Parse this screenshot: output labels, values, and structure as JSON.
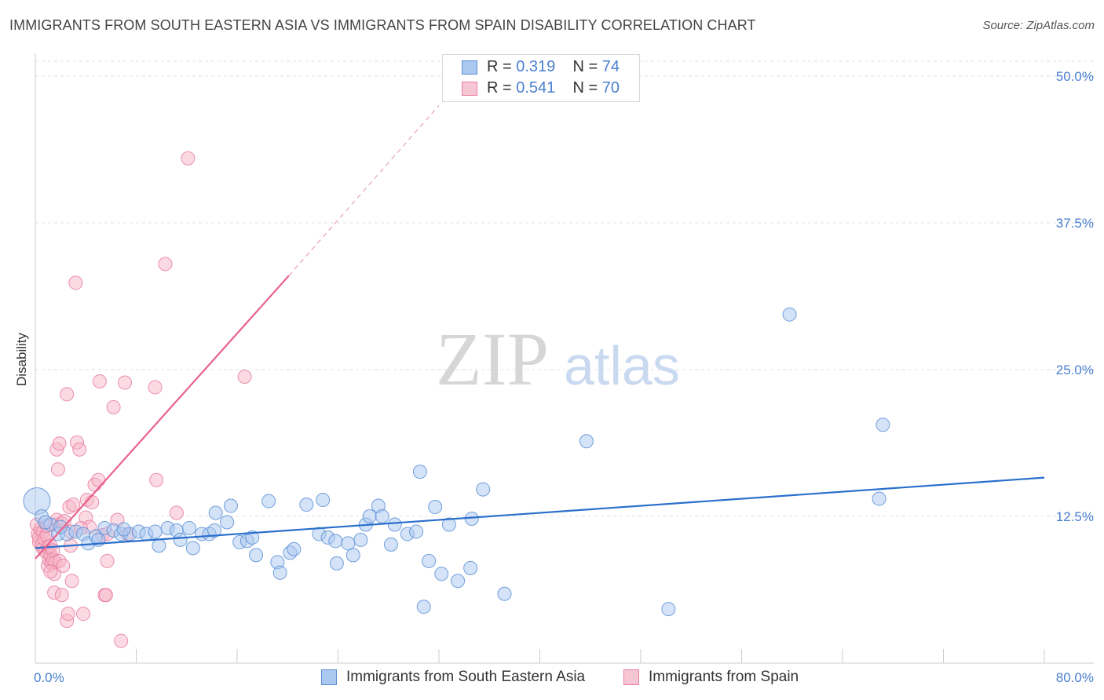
{
  "title": "IMMIGRANTS FROM SOUTH EASTERN ASIA VS IMMIGRANTS FROM SPAIN DISABILITY CORRELATION CHART",
  "source": "Source: ZipAtlas.com",
  "watermark": {
    "zip": "ZIP",
    "atlas": "atlas"
  },
  "legend": {
    "r_label": "R =",
    "n_label": "N =",
    "rows": [
      {
        "r": "0.319",
        "n": "74"
      },
      {
        "r": "0.541",
        "n": "70"
      }
    ]
  },
  "colors": {
    "blue_fill": "#aac8f0",
    "blue_stroke": "#5b8fd6",
    "blue_line": "#2a6fcc",
    "pink_fill": "#f7b6c9",
    "pink_stroke": "#e87ea0",
    "pink_line": "#e8608c",
    "tick_text": "#4a7fd0",
    "grid": "#e2e2e2"
  },
  "chart_data": {
    "type": "scatter",
    "title": "IMMIGRANTS FROM SOUTH EASTERN ASIA VS IMMIGRANTS FROM SPAIN DISABILITY CORRELATION CHART",
    "xlabel": "",
    "ylabel": "Disability",
    "xlim": [
      0,
      80
    ],
    "ylim": [
      0,
      50
    ],
    "x_tick_labels": [
      "0.0%",
      "80.0%"
    ],
    "y_ticks": [
      12.5,
      25.0,
      37.5,
      50.0
    ],
    "y_tick_labels": [
      "12.5%",
      "25.0%",
      "37.5%",
      "50.0%"
    ],
    "grid": true,
    "legend_position": "top-center",
    "series": [
      {
        "name": "Immigrants from South Eastern Asia",
        "R": 0.319,
        "N": 74,
        "trend": {
          "x": [
            0,
            80
          ],
          "y": [
            9.8,
            15.8
          ],
          "style": "solid"
        },
        "points": [
          {
            "x": 0.1,
            "y": 13.8,
            "big": true
          },
          {
            "x": 0.5,
            "y": 12.5
          },
          {
            "x": 1.2,
            "y": 11.8
          },
          {
            "x": 1.8,
            "y": 11.0
          },
          {
            "x": 2.5,
            "y": 11.0
          },
          {
            "x": 3.2,
            "y": 11.2
          },
          {
            "x": 3.8,
            "y": 11.0
          },
          {
            "x": 4.2,
            "y": 10.2
          },
          {
            "x": 4.8,
            "y": 10.8
          },
          {
            "x": 5.5,
            "y": 11.5
          },
          {
            "x": 6.2,
            "y": 11.3
          },
          {
            "x": 6.8,
            "y": 11.0
          },
          {
            "x": 7.5,
            "y": 11.0
          },
          {
            "x": 8.2,
            "y": 11.2
          },
          {
            "x": 8.8,
            "y": 11.0
          },
          {
            "x": 9.5,
            "y": 11.2
          },
          {
            "x": 9.8,
            "y": 10.0
          },
          {
            "x": 10.5,
            "y": 11.5
          },
          {
            "x": 11.2,
            "y": 11.3
          },
          {
            "x": 11.5,
            "y": 10.5
          },
          {
            "x": 12.2,
            "y": 11.5
          },
          {
            "x": 12.5,
            "y": 9.8
          },
          {
            "x": 13.2,
            "y": 11.0
          },
          {
            "x": 13.8,
            "y": 11.0
          },
          {
            "x": 14.2,
            "y": 11.3
          },
          {
            "x": 14.3,
            "y": 12.8
          },
          {
            "x": 15.2,
            "y": 12.0
          },
          {
            "x": 15.5,
            "y": 13.4
          },
          {
            "x": 16.2,
            "y": 10.3
          },
          {
            "x": 16.8,
            "y": 10.4
          },
          {
            "x": 17.2,
            "y": 10.7
          },
          {
            "x": 17.5,
            "y": 9.2
          },
          {
            "x": 18.5,
            "y": 13.8
          },
          {
            "x": 19.2,
            "y": 8.6
          },
          {
            "x": 19.4,
            "y": 7.7
          },
          {
            "x": 20.2,
            "y": 9.4
          },
          {
            "x": 20.5,
            "y": 9.7
          },
          {
            "x": 21.5,
            "y": 13.5
          },
          {
            "x": 22.8,
            "y": 13.9
          },
          {
            "x": 22.5,
            "y": 11.0
          },
          {
            "x": 23.2,
            "y": 10.7
          },
          {
            "x": 23.8,
            "y": 10.4
          },
          {
            "x": 23.9,
            "y": 8.5
          },
          {
            "x": 24.8,
            "y": 10.2
          },
          {
            "x": 25.2,
            "y": 9.2
          },
          {
            "x": 25.8,
            "y": 10.5
          },
          {
            "x": 26.2,
            "y": 11.8
          },
          {
            "x": 26.5,
            "y": 12.5
          },
          {
            "x": 27.2,
            "y": 13.4
          },
          {
            "x": 27.5,
            "y": 12.5
          },
          {
            "x": 28.2,
            "y": 10.1
          },
          {
            "x": 28.5,
            "y": 11.8
          },
          {
            "x": 29.5,
            "y": 11.0
          },
          {
            "x": 30.2,
            "y": 11.2
          },
          {
            "x": 30.5,
            "y": 16.3
          },
          {
            "x": 30.8,
            "y": 4.8
          },
          {
            "x": 31.2,
            "y": 8.7
          },
          {
            "x": 31.7,
            "y": 13.3
          },
          {
            "x": 32.2,
            "y": 7.6
          },
          {
            "x": 32.8,
            "y": 11.8
          },
          {
            "x": 33.5,
            "y": 7.0
          },
          {
            "x": 34.5,
            "y": 8.1
          },
          {
            "x": 34.6,
            "y": 12.3
          },
          {
            "x": 35.5,
            "y": 14.8
          },
          {
            "x": 37.2,
            "y": 5.9
          },
          {
            "x": 43.7,
            "y": 18.9
          },
          {
            "x": 50.2,
            "y": 4.6
          },
          {
            "x": 59.8,
            "y": 29.7
          },
          {
            "x": 67.2,
            "y": 20.3
          },
          {
            "x": 66.9,
            "y": 14.0
          },
          {
            "x": 0.8,
            "y": 12.0
          },
          {
            "x": 2.0,
            "y": 11.6
          },
          {
            "x": 5.0,
            "y": 10.5
          },
          {
            "x": 7.0,
            "y": 11.4
          }
        ]
      },
      {
        "name": "Immigrants from Spain",
        "R": 0.541,
        "N": 70,
        "trend": {
          "x": [
            0,
            20.1
          ],
          "y": [
            8.9,
            33.0
          ],
          "style": "solid",
          "extension": {
            "x": [
              20.1,
              32
            ],
            "y": [
              33.0,
              47.5
            ],
            "style": "dashed"
          }
        },
        "points": [
          {
            "x": 0.1,
            "y": 11.8
          },
          {
            "x": 0.2,
            "y": 11.0
          },
          {
            "x": 0.3,
            "y": 10.3
          },
          {
            "x": 0.3,
            "y": 10.7
          },
          {
            "x": 0.4,
            "y": 11.4
          },
          {
            "x": 0.5,
            "y": 10.1
          },
          {
            "x": 0.6,
            "y": 11.2
          },
          {
            "x": 0.6,
            "y": 9.8
          },
          {
            "x": 0.7,
            "y": 10.6
          },
          {
            "x": 0.8,
            "y": 9.5
          },
          {
            "x": 0.9,
            "y": 10.9
          },
          {
            "x": 0.9,
            "y": 11.7
          },
          {
            "x": 1.0,
            "y": 8.3
          },
          {
            "x": 1.0,
            "y": 9.9
          },
          {
            "x": 1.1,
            "y": 8.8
          },
          {
            "x": 1.2,
            "y": 9.2
          },
          {
            "x": 1.2,
            "y": 10.0
          },
          {
            "x": 1.3,
            "y": 8.5
          },
          {
            "x": 1.4,
            "y": 9.6
          },
          {
            "x": 1.4,
            "y": 8.8
          },
          {
            "x": 1.5,
            "y": 7.6
          },
          {
            "x": 1.5,
            "y": 6.0
          },
          {
            "x": 1.6,
            "y": 11.8
          },
          {
            "x": 1.6,
            "y": 8.6
          },
          {
            "x": 1.7,
            "y": 12.2
          },
          {
            "x": 1.7,
            "y": 18.2
          },
          {
            "x": 1.8,
            "y": 16.5
          },
          {
            "x": 1.9,
            "y": 8.7
          },
          {
            "x": 1.9,
            "y": 18.7
          },
          {
            "x": 2.1,
            "y": 11.9
          },
          {
            "x": 2.1,
            "y": 5.8
          },
          {
            "x": 2.2,
            "y": 8.3
          },
          {
            "x": 2.3,
            "y": 12.1
          },
          {
            "x": 2.5,
            "y": 3.6
          },
          {
            "x": 2.5,
            "y": 22.9
          },
          {
            "x": 2.6,
            "y": 4.2
          },
          {
            "x": 2.7,
            "y": 13.3
          },
          {
            "x": 2.8,
            "y": 11.2
          },
          {
            "x": 2.8,
            "y": 10.0
          },
          {
            "x": 2.9,
            "y": 7.0
          },
          {
            "x": 3.0,
            "y": 13.5
          },
          {
            "x": 3.2,
            "y": 32.4
          },
          {
            "x": 3.3,
            "y": 18.8
          },
          {
            "x": 3.5,
            "y": 18.2
          },
          {
            "x": 3.8,
            "y": 4.2
          },
          {
            "x": 4.0,
            "y": 12.4
          },
          {
            "x": 4.1,
            "y": 13.9
          },
          {
            "x": 4.3,
            "y": 11.6
          },
          {
            "x": 4.5,
            "y": 13.7
          },
          {
            "x": 4.7,
            "y": 15.2
          },
          {
            "x": 5.0,
            "y": 15.6
          },
          {
            "x": 5.1,
            "y": 24.0
          },
          {
            "x": 5.3,
            "y": 10.9
          },
          {
            "x": 5.5,
            "y": 5.8
          },
          {
            "x": 5.6,
            "y": 5.8
          },
          {
            "x": 5.7,
            "y": 8.7
          },
          {
            "x": 5.7,
            "y": 11.0
          },
          {
            "x": 6.2,
            "y": 21.8
          },
          {
            "x": 6.5,
            "y": 12.2
          },
          {
            "x": 6.8,
            "y": 1.9
          },
          {
            "x": 7.1,
            "y": 23.9
          },
          {
            "x": 9.5,
            "y": 23.5
          },
          {
            "x": 9.6,
            "y": 15.6
          },
          {
            "x": 10.3,
            "y": 34.0
          },
          {
            "x": 11.2,
            "y": 12.8
          },
          {
            "x": 12.1,
            "y": 43.0
          },
          {
            "x": 16.6,
            "y": 24.4
          },
          {
            "x": 7.3,
            "y": 11.0
          },
          {
            "x": 3.6,
            "y": 11.5
          },
          {
            "x": 1.2,
            "y": 7.8
          }
        ]
      }
    ]
  }
}
